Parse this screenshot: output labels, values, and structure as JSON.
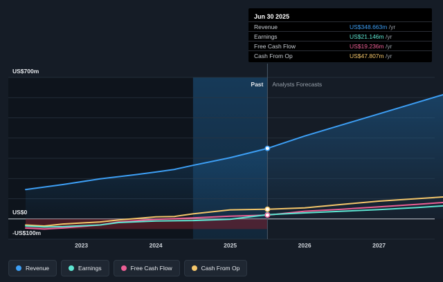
{
  "tooltip": {
    "date": "Jun 30 2025",
    "rows": [
      {
        "label": "Revenue",
        "value": "US$348.663m",
        "unit": "/yr",
        "color": "#3d9ff5"
      },
      {
        "label": "Earnings",
        "value": "US$21.146m",
        "unit": "/yr",
        "color": "#5ee6d2"
      },
      {
        "label": "Free Cash Flow",
        "value": "US$19.236m",
        "unit": "/yr",
        "color": "#ec5f95"
      },
      {
        "label": "Cash From Op",
        "value": "US$47.807m",
        "unit": "/yr",
        "color": "#f5c76b"
      }
    ]
  },
  "legend": [
    {
      "label": "Revenue",
      "color": "#3d9ff5"
    },
    {
      "label": "Earnings",
      "color": "#5ee6d2"
    },
    {
      "label": "Free Cash Flow",
      "color": "#ec5f95"
    },
    {
      "label": "Cash From Op",
      "color": "#f5c76b"
    }
  ],
  "chart_data": {
    "type": "line",
    "y_tick_labels": [
      "US$700m",
      "US$0",
      "-US$100m"
    ],
    "ylim": [
      -100,
      700
    ],
    "xlim": [
      2022.25,
      2028.0
    ],
    "x_ticks": [
      2023,
      2024,
      2025,
      2026,
      2027
    ],
    "x_tick_labels": [
      "2023",
      "2024",
      "2025",
      "2026",
      "2027"
    ],
    "past_label": "Past",
    "forecast_label": "Analysts Forecasts",
    "divider_x": 2025.5,
    "highlight_start": 2024.5,
    "series": [
      {
        "name": "Revenue",
        "color": "#3d9ff5",
        "points": [
          [
            2022.25,
            145
          ],
          [
            2022.75,
            170
          ],
          [
            2023.25,
            198
          ],
          [
            2023.75,
            220
          ],
          [
            2024.0,
            232
          ],
          [
            2024.25,
            245
          ],
          [
            2024.5,
            265
          ],
          [
            2025.0,
            303
          ],
          [
            2025.5,
            349
          ],
          [
            2026.0,
            410
          ],
          [
            2026.5,
            465
          ],
          [
            2027.0,
            520
          ],
          [
            2027.5,
            575
          ],
          [
            2028.0,
            630
          ]
        ]
      },
      {
        "name": "Earnings",
        "color": "#5ee6d2",
        "points": [
          [
            2022.25,
            -35
          ],
          [
            2022.5,
            -40
          ],
          [
            2022.75,
            -38
          ],
          [
            2023.25,
            -30
          ],
          [
            2023.5,
            -18
          ],
          [
            2024.0,
            -10
          ],
          [
            2024.5,
            -8
          ],
          [
            2025.0,
            -2
          ],
          [
            2025.5,
            21
          ],
          [
            2026.0,
            30
          ],
          [
            2026.5,
            38
          ],
          [
            2027.0,
            46
          ],
          [
            2027.5,
            56
          ],
          [
            2028.0,
            68
          ]
        ]
      },
      {
        "name": "Free Cash Flow",
        "color": "#ec5f95",
        "points": [
          [
            2022.25,
            -45
          ],
          [
            2022.5,
            -50
          ],
          [
            2022.75,
            -45
          ],
          [
            2023.25,
            -30
          ],
          [
            2023.5,
            -15
          ],
          [
            2024.0,
            -2
          ],
          [
            2024.5,
            5
          ],
          [
            2025.0,
            14
          ],
          [
            2025.5,
            19
          ],
          [
            2026.0,
            38
          ],
          [
            2026.5,
            48
          ],
          [
            2027.0,
            60
          ],
          [
            2027.5,
            72
          ],
          [
            2028.0,
            85
          ]
        ]
      },
      {
        "name": "Cash From Op",
        "color": "#f5c76b",
        "points": [
          [
            2022.25,
            -30
          ],
          [
            2022.5,
            -35
          ],
          [
            2022.75,
            -25
          ],
          [
            2023.25,
            -15
          ],
          [
            2023.5,
            -5
          ],
          [
            2024.0,
            10
          ],
          [
            2024.25,
            12
          ],
          [
            2024.5,
            25
          ],
          [
            2025.0,
            45
          ],
          [
            2025.5,
            48
          ],
          [
            2026.0,
            55
          ],
          [
            2026.5,
            72
          ],
          [
            2027.0,
            88
          ],
          [
            2027.5,
            100
          ],
          [
            2028.0,
            112
          ]
        ]
      }
    ]
  }
}
